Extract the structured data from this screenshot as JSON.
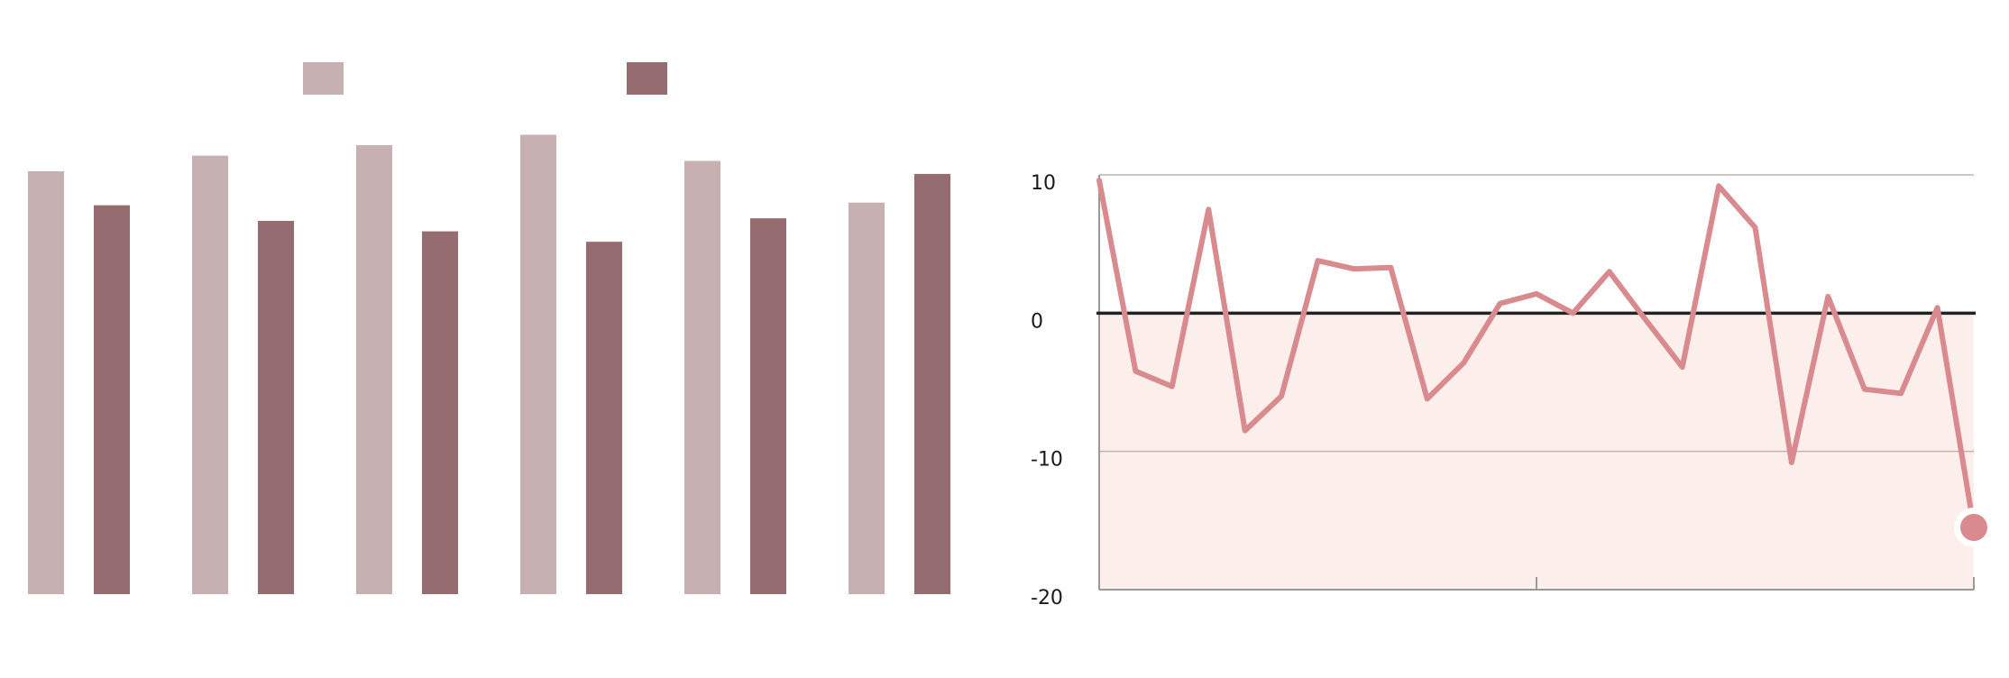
{
  "colors": {
    "light_bar": "#c6b0b2",
    "dark_bar": "#956c6f",
    "line": "#d98a8e",
    "fill": "#fcefeb",
    "zero_line": "#222222",
    "grid": "#bfb3b3",
    "axis": "#999999"
  },
  "chart_data": [
    {
      "type": "bar",
      "categories": [
        "",
        "",
        "",
        "",
        "",
        ""
      ],
      "series": [
        {
          "values": [
            8.1,
            8.4,
            8.6,
            8.8,
            8.3,
            7.5
          ]
        },
        {
          "values": [
            7.45,
            7.15,
            6.95,
            6.75,
            7.2,
            8.05
          ]
        }
      ],
      "legend": "top",
      "ylim": [
        0,
        10
      ],
      "grid": false
    },
    {
      "type": "line",
      "x": [
        0,
        1,
        2,
        3,
        4,
        5,
        6,
        7,
        8,
        9,
        10,
        11,
        12,
        13,
        14,
        15,
        16,
        17,
        18,
        19,
        20,
        21,
        22,
        23,
        24
      ],
      "values": [
        9.6,
        -4.2,
        -5.3,
        7.5,
        -8.5,
        -6.0,
        3.8,
        3.2,
        3.3,
        -6.2,
        -3.6,
        0.7,
        1.4,
        0.0,
        3.0,
        -0.5,
        -3.9,
        9.2,
        6.2,
        -10.8,
        1.2,
        -5.5,
        -5.8,
        0.4,
        -15.5
      ],
      "ylim": [
        -20,
        10
      ],
      "yticks": [
        "10",
        "0",
        "-10",
        "-20"
      ],
      "ytick_values": [
        10,
        0,
        -10,
        -20
      ],
      "grid": true,
      "area_below_zero": true,
      "end_marker": true
    }
  ]
}
